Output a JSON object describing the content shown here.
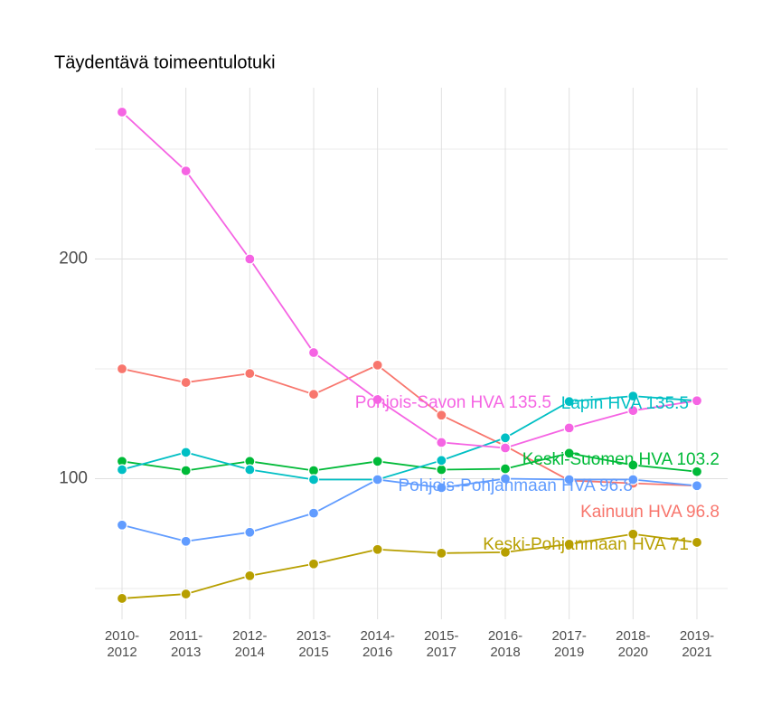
{
  "chart_data": {
    "type": "line",
    "title": "Täydentävä toimeentulotuki",
    "categories": [
      "2010-\n2012",
      "2011-\n2013",
      "2012-\n2014",
      "2013-\n2015",
      "2014-\n2016",
      "2015-\n2017",
      "2016-\n2018",
      "2017-\n2019",
      "2018-\n2020",
      "2019-\n2021"
    ],
    "series": [
      {
        "name": "Kainuun HVA",
        "color": "#f8766d",
        "values": [
          150.0,
          143.8,
          147.9,
          138.4,
          151.7,
          128.9,
          114.9,
          99.2,
          97.9,
          96.8
        ]
      },
      {
        "name": "Keski-Pohjanmaan HVA",
        "color": "#b79f00",
        "values": [
          45.5,
          47.5,
          55.8,
          61.2,
          67.8,
          66.1,
          66.5,
          70.2,
          74.8,
          71
        ]
      },
      {
        "name": "Keski-Suomen HVA",
        "color": "#00ba38",
        "values": [
          107.9,
          103.7,
          107.9,
          103.7,
          107.9,
          104.1,
          104.5,
          111.6,
          106.2,
          103.2
        ]
      },
      {
        "name": "Lapin HVA",
        "color": "#00bfc4",
        "values": [
          104.1,
          112.0,
          104.1,
          99.6,
          99.6,
          108.3,
          118.6,
          135.1,
          137.6,
          135.5
        ]
      },
      {
        "name": "Pohjois-Pohjanmaan HVA",
        "color": "#619cff",
        "values": [
          78.9,
          71.5,
          75.6,
          84.3,
          99.6,
          95.9,
          100,
          99.6,
          99.6,
          96.8
        ]
      },
      {
        "name": "Pohjois-Savon HVA",
        "color": "#f564e3",
        "values": [
          266.9,
          240.1,
          200,
          157.4,
          136.0,
          116.5,
          114.0,
          123.1,
          131.0,
          135.5
        ]
      }
    ],
    "ylim": [
      36,
      278
    ],
    "yticks": [
      100,
      200
    ],
    "minor_yticks": [
      50,
      150,
      250
    ],
    "grid": true
  }
}
